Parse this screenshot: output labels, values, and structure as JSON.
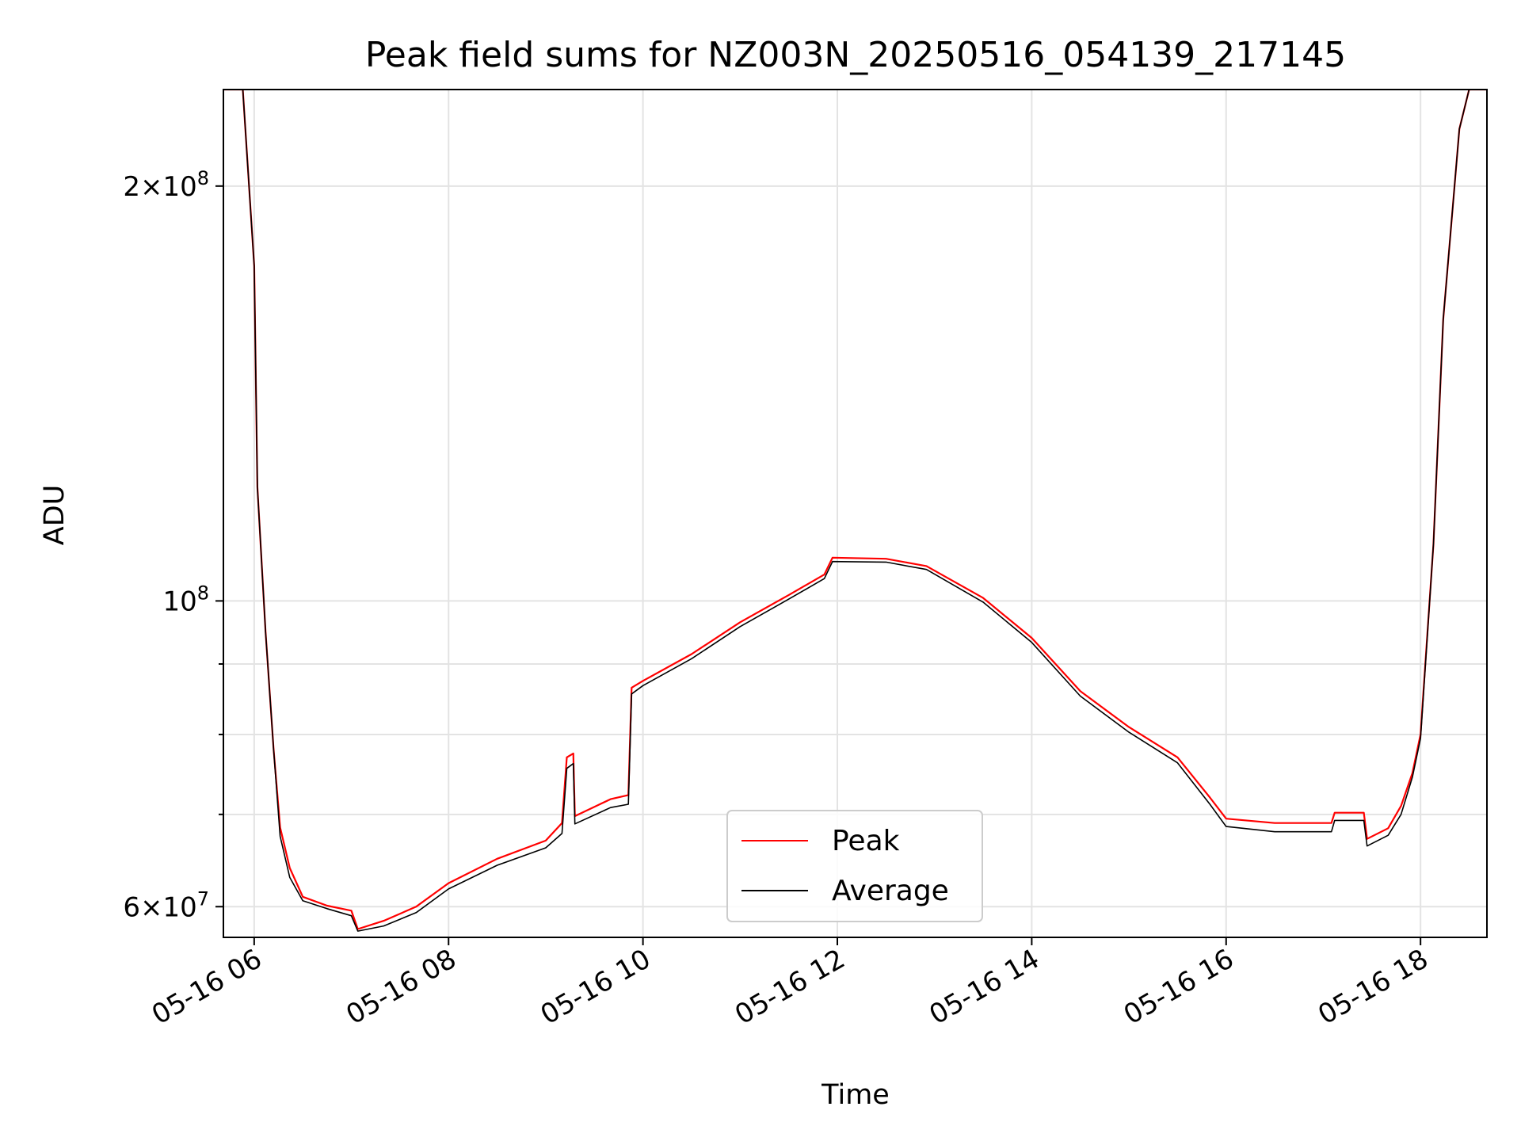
{
  "chart_data": {
    "type": "line",
    "title": "Peak field sums for NZ003N_20250516_054139_217145",
    "xlabel": "Time",
    "ylabel": "ADU",
    "xlim": [
      "2025-05-16T05:41",
      "2025-05-16T18:41"
    ],
    "ylim": [
      57000000,
      235000000
    ],
    "yscale": "log",
    "grid": true,
    "legend_position": "lower center",
    "x_ticks": [
      {
        "value": "2025-05-16T06:00",
        "label": "05-16 06"
      },
      {
        "value": "2025-05-16T08:00",
        "label": "05-16 08"
      },
      {
        "value": "2025-05-16T10:00",
        "label": "05-16 10"
      },
      {
        "value": "2025-05-16T12:00",
        "label": "05-16 12"
      },
      {
        "value": "2025-05-16T14:00",
        "label": "05-16 14"
      },
      {
        "value": "2025-05-16T16:00",
        "label": "05-16 16"
      },
      {
        "value": "2025-05-16T18:00",
        "label": "05-16 18"
      }
    ],
    "y_ticks": [
      {
        "value": 60000000,
        "label_base": "6×10",
        "label_exp": "7"
      },
      {
        "value": 100000000,
        "label_base": "10",
        "label_exp": "8"
      },
      {
        "value": 200000000,
        "label_base": "2×10",
        "label_exp": "8"
      }
    ],
    "y_minor_ticks": [
      70000000,
      80000000,
      90000000
    ],
    "series": [
      {
        "name": "Peak",
        "color": "#ff0000",
        "points": [
          [
            "2025-05-16T05:41",
            235000000
          ],
          [
            "2025-05-16T05:53",
            235000000
          ],
          [
            "2025-05-16T06:00",
            175000000
          ],
          [
            "2025-05-16T06:02",
            121000000
          ],
          [
            "2025-05-16T06:07",
            95000000
          ],
          [
            "2025-05-16T06:12",
            78000000
          ],
          [
            "2025-05-16T06:16",
            68500000
          ],
          [
            "2025-05-16T06:22",
            64000000
          ],
          [
            "2025-05-16T06:30",
            61000000
          ],
          [
            "2025-05-16T06:45",
            60100000
          ],
          [
            "2025-05-16T07:00",
            59600000
          ],
          [
            "2025-05-16T07:04",
            57800000
          ],
          [
            "2025-05-16T07:20",
            58600000
          ],
          [
            "2025-05-16T07:40",
            60000000
          ],
          [
            "2025-05-16T08:00",
            62400000
          ],
          [
            "2025-05-16T08:30",
            65000000
          ],
          [
            "2025-05-16T09:00",
            67000000
          ],
          [
            "2025-05-16T09:10",
            69000000
          ],
          [
            "2025-05-16T09:13",
            77000000
          ],
          [
            "2025-05-16T09:17",
            77500000
          ],
          [
            "2025-05-16T09:18",
            69800000
          ],
          [
            "2025-05-16T09:40",
            71800000
          ],
          [
            "2025-05-16T09:51",
            72300000
          ],
          [
            "2025-05-16T09:53",
            86500000
          ],
          [
            "2025-05-16T10:00",
            87500000
          ],
          [
            "2025-05-16T10:30",
            91500000
          ],
          [
            "2025-05-16T11:00",
            96500000
          ],
          [
            "2025-05-16T11:30",
            101000000
          ],
          [
            "2025-05-16T11:52",
            104500000
          ],
          [
            "2025-05-16T11:57",
            107500000
          ],
          [
            "2025-05-16T12:30",
            107300000
          ],
          [
            "2025-05-16T12:55",
            106000000
          ],
          [
            "2025-05-16T13:30",
            100500000
          ],
          [
            "2025-05-16T14:00",
            94000000
          ],
          [
            "2025-05-16T14:30",
            86000000
          ],
          [
            "2025-05-16T15:00",
            81000000
          ],
          [
            "2025-05-16T15:30",
            77000000
          ],
          [
            "2025-05-16T15:50",
            72000000
          ],
          [
            "2025-05-16T16:00",
            69500000
          ],
          [
            "2025-05-16T16:30",
            69000000
          ],
          [
            "2025-05-16T17:05",
            69000000
          ],
          [
            "2025-05-16T17:07",
            70200000
          ],
          [
            "2025-05-16T17:25",
            70200000
          ],
          [
            "2025-05-16T17:27",
            67200000
          ],
          [
            "2025-05-16T17:40",
            68400000
          ],
          [
            "2025-05-16T17:48",
            71000000
          ],
          [
            "2025-05-16T17:55",
            75000000
          ],
          [
            "2025-05-16T18:00",
            80000000
          ],
          [
            "2025-05-16T18:08",
            110000000
          ],
          [
            "2025-05-16T18:14",
            160000000
          ],
          [
            "2025-05-16T18:24",
            220000000
          ],
          [
            "2025-05-16T18:30",
            235000000
          ],
          [
            "2025-05-16T18:41",
            235000000
          ]
        ]
      },
      {
        "name": "Average",
        "color": "#000000",
        "points": [
          [
            "2025-05-16T05:41",
            235000000
          ],
          [
            "2025-05-16T05:53",
            235000000
          ],
          [
            "2025-05-16T06:00",
            175000000
          ],
          [
            "2025-05-16T06:02",
            121000000
          ],
          [
            "2025-05-16T06:07",
            95000000
          ],
          [
            "2025-05-16T06:12",
            78000000
          ],
          [
            "2025-05-16T06:16",
            67500000
          ],
          [
            "2025-05-16T06:22",
            63000000
          ],
          [
            "2025-05-16T06:30",
            60600000
          ],
          [
            "2025-05-16T06:45",
            59800000
          ],
          [
            "2025-05-16T07:00",
            59100000
          ],
          [
            "2025-05-16T07:04",
            57600000
          ],
          [
            "2025-05-16T07:20",
            58100000
          ],
          [
            "2025-05-16T07:40",
            59400000
          ],
          [
            "2025-05-16T08:00",
            61800000
          ],
          [
            "2025-05-16T08:30",
            64300000
          ],
          [
            "2025-05-16T09:00",
            66200000
          ],
          [
            "2025-05-16T09:10",
            67800000
          ],
          [
            "2025-05-16T09:13",
            75600000
          ],
          [
            "2025-05-16T09:17",
            76200000
          ],
          [
            "2025-05-16T09:18",
            68900000
          ],
          [
            "2025-05-16T09:40",
            70800000
          ],
          [
            "2025-05-16T09:51",
            71200000
          ],
          [
            "2025-05-16T09:53",
            85600000
          ],
          [
            "2025-05-16T10:00",
            86800000
          ],
          [
            "2025-05-16T10:30",
            90800000
          ],
          [
            "2025-05-16T11:00",
            95800000
          ],
          [
            "2025-05-16T11:30",
            100300000
          ],
          [
            "2025-05-16T11:52",
            103800000
          ],
          [
            "2025-05-16T11:57",
            106800000
          ],
          [
            "2025-05-16T12:30",
            106700000
          ],
          [
            "2025-05-16T12:55",
            105400000
          ],
          [
            "2025-05-16T13:30",
            99800000
          ],
          [
            "2025-05-16T14:00",
            93300000
          ],
          [
            "2025-05-16T14:30",
            85300000
          ],
          [
            "2025-05-16T15:00",
            80300000
          ],
          [
            "2025-05-16T15:30",
            76300000
          ],
          [
            "2025-05-16T15:50",
            71200000
          ],
          [
            "2025-05-16T16:00",
            68600000
          ],
          [
            "2025-05-16T16:30",
            68000000
          ],
          [
            "2025-05-16T17:05",
            68000000
          ],
          [
            "2025-05-16T17:07",
            69300000
          ],
          [
            "2025-05-16T17:25",
            69300000
          ],
          [
            "2025-05-16T17:27",
            66400000
          ],
          [
            "2025-05-16T17:40",
            67600000
          ],
          [
            "2025-05-16T17:48",
            70000000
          ],
          [
            "2025-05-16T17:55",
            74500000
          ],
          [
            "2025-05-16T18:00",
            79500000
          ],
          [
            "2025-05-16T18:08",
            110000000
          ],
          [
            "2025-05-16T18:14",
            160000000
          ],
          [
            "2025-05-16T18:24",
            220000000
          ],
          [
            "2025-05-16T18:30",
            235000000
          ],
          [
            "2025-05-16T18:41",
            235000000
          ]
        ]
      }
    ],
    "legend": [
      {
        "label": "Peak",
        "color": "#ff0000"
      },
      {
        "label": "Average",
        "color": "#000000"
      }
    ]
  }
}
